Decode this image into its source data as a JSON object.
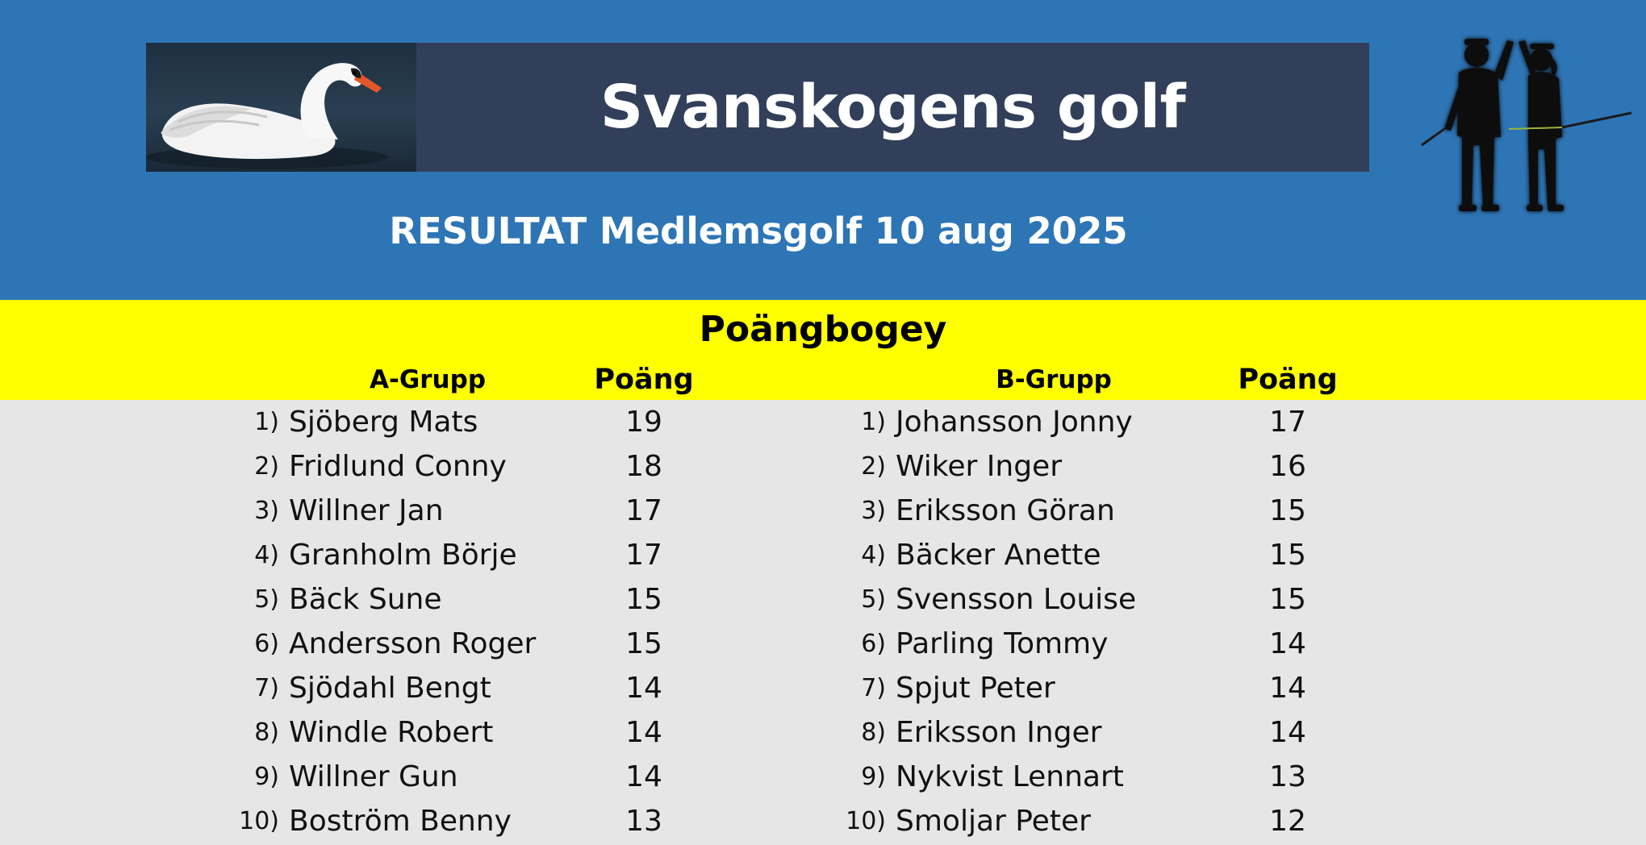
{
  "header": {
    "club_title": "Svanskogens golf",
    "subtitle": "RESULTAT Medlemsgolf  10 aug  2025",
    "logo_image": "swan-photo",
    "decoration_image": "golfers-high-five-silhouette"
  },
  "competition": {
    "format_title": "Poängbogey"
  },
  "group_a": {
    "title": "A-Grupp",
    "points_label": "Poäng",
    "rows": [
      {
        "rank": "1)",
        "name": "Sjöberg Mats",
        "points": "19"
      },
      {
        "rank": "2)",
        "name": "Fridlund Conny",
        "points": "18"
      },
      {
        "rank": "3)",
        "name": "Willner Jan",
        "points": "17"
      },
      {
        "rank": "4)",
        "name": "Granholm Börje",
        "points": "17"
      },
      {
        "rank": "5)",
        "name": "Bäck Sune",
        "points": "15"
      },
      {
        "rank": "6)",
        "name": "Andersson Roger",
        "points": "15"
      },
      {
        "rank": "7)",
        "name": "Sjödahl Bengt",
        "points": "14"
      },
      {
        "rank": "8)",
        "name": "Windle Robert",
        "points": "14"
      },
      {
        "rank": "9)",
        "name": "Willner Gun",
        "points": "14"
      },
      {
        "rank": "10)",
        "name": "Boström Benny",
        "points": "13"
      }
    ]
  },
  "group_b": {
    "title": "B-Grupp",
    "points_label": "Poäng",
    "rows": [
      {
        "rank": "1)",
        "name": "Johansson Jonny",
        "points": "17"
      },
      {
        "rank": "2)",
        "name": "Wiker Inger",
        "points": "16"
      },
      {
        "rank": "3)",
        "name": "Eriksson Göran",
        "points": "15"
      },
      {
        "rank": "4)",
        "name": "Bäcker Anette",
        "points": "15"
      },
      {
        "rank": "5)",
        "name": "Svensson Louise",
        "points": "15"
      },
      {
        "rank": "6)",
        "name": "Parling Tommy",
        "points": "14"
      },
      {
        "rank": "7)",
        "name": "Spjut Peter",
        "points": "14"
      },
      {
        "rank": "8)",
        "name": "Eriksson Inger",
        "points": "14"
      },
      {
        "rank": "9)",
        "name": "Nykvist Lennart",
        "points": "13"
      },
      {
        "rank": "10)",
        "name": "Smoljar Peter",
        "points": "12"
      }
    ]
  },
  "colors": {
    "header_blue": "#2e75b6",
    "title_bar": "#323f5a",
    "highlight_yellow": "#ffff00",
    "table_background": "#e6e6e6"
  }
}
